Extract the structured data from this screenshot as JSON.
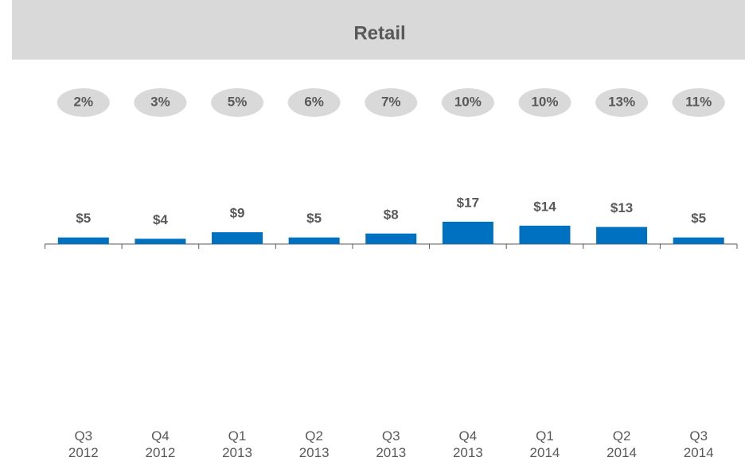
{
  "chart_data": {
    "type": "bar",
    "title": "Retail",
    "categories": [
      "Q3\n2012",
      "Q4\n2012",
      "Q1\n2013",
      "Q2\n2013",
      "Q3\n2013",
      "Q4\n2013",
      "Q1\n2014",
      "Q2\n2014",
      "Q3\n2014"
    ],
    "values": [
      5,
      4,
      9,
      5,
      8,
      17,
      14,
      13,
      5
    ],
    "value_labels": [
      "$5",
      "$4",
      "$9",
      "$5",
      "$8",
      "$17",
      "$14",
      "$13",
      "$5"
    ],
    "percent_values": [
      2,
      3,
      5,
      6,
      7,
      10,
      10,
      13,
      11
    ],
    "percent_labels": [
      "2%",
      "3%",
      "5%",
      "6%",
      "7%",
      "10%",
      "10%",
      "13%",
      "11%"
    ],
    "color": "#0070c0",
    "ylim": [
      0,
      100
    ]
  }
}
